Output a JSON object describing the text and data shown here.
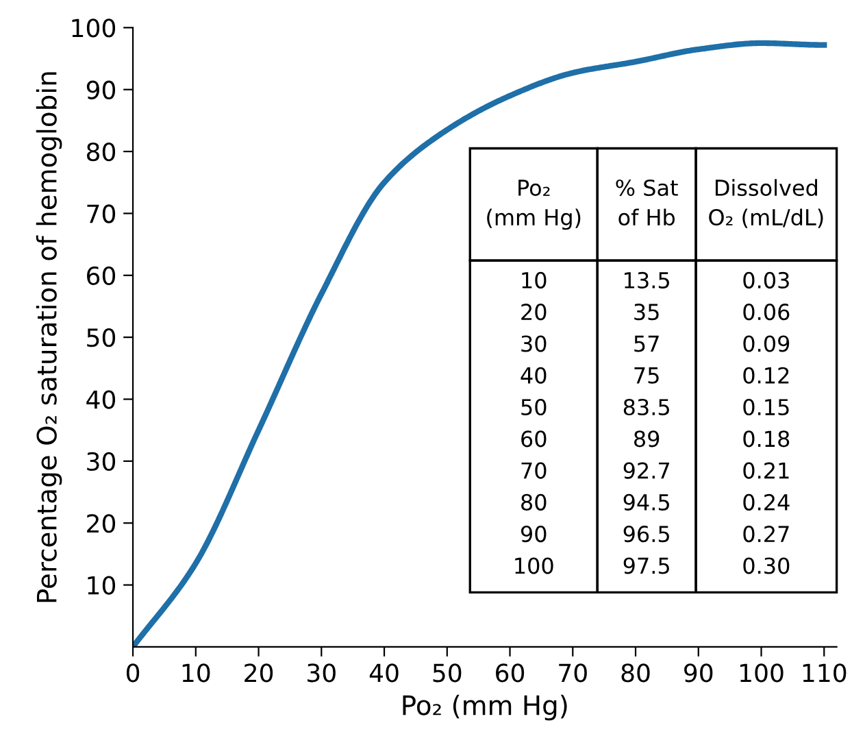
{
  "chart_data": {
    "type": "line",
    "xlabel": "Po₂ (mm Hg)",
    "ylabel": "Percentage O₂ saturation of hemoglobin",
    "series": [
      {
        "color": "#1f6fa8",
        "x": [
          0,
          10,
          20,
          30,
          40,
          50,
          60,
          70,
          80,
          90,
          100,
          110
        ],
        "values": [
          0,
          13.5,
          35,
          57,
          75,
          83.5,
          89,
          92.7,
          94.5,
          96.5,
          97.5,
          97.2
        ]
      }
    ],
    "xlim": [
      0,
      112
    ],
    "ylim": [
      0,
      100
    ],
    "xticks": [
      0,
      10,
      20,
      30,
      40,
      50,
      60,
      70,
      80,
      90,
      100,
      110
    ],
    "yticks": [
      10,
      20,
      30,
      40,
      50,
      60,
      70,
      80,
      90,
      100
    ],
    "grid": false,
    "legend": false,
    "marker": "none",
    "line_style": "solid",
    "annotations": [
      "Po₂\n(mm Hg)",
      "% Sat\nof Hb",
      "Dissolved\nO₂ (mL/dL)",
      "10",
      "13.5",
      "0.03",
      "20",
      "35",
      "0.06",
      "30",
      "57",
      "0.09",
      "40",
      "75",
      "0.12",
      "50",
      "83.5",
      "0.15",
      "60",
      "89",
      "0.18",
      "70",
      "92.7",
      "0.21",
      "80",
      "94.5",
      "0.24",
      "90",
      "96.5",
      "0.27",
      "100",
      "97.5",
      "0.30"
    ]
  }
}
